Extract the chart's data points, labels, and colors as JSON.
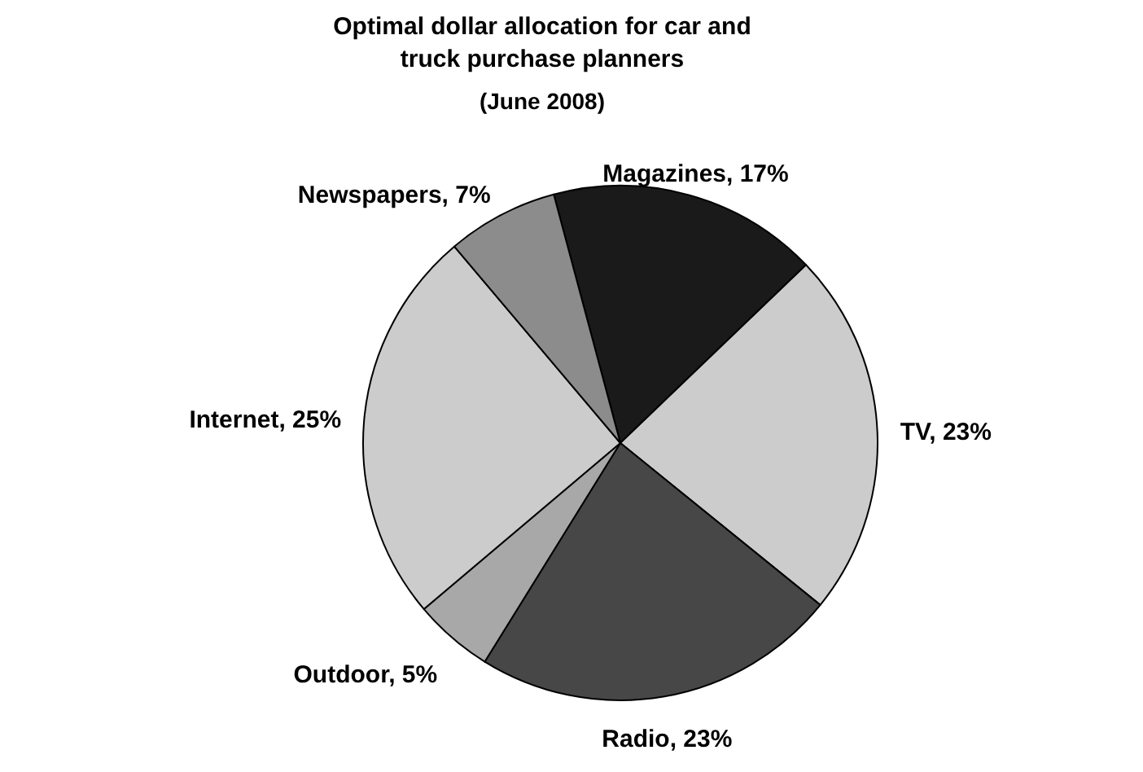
{
  "chart_data": {
    "type": "pie",
    "title": "Optimal dollar allocation for car and truck purchase planners",
    "subtitle": "(June 2008)",
    "categories": [
      "Magazines",
      "TV",
      "Radio",
      "Outdoor",
      "Internet",
      "Newspapers"
    ],
    "value_labels": [
      "17%",
      "23%",
      "23%",
      "5%",
      "25%",
      "7%"
    ],
    "values": [
      17,
      23,
      23,
      5,
      25,
      7
    ],
    "colors": [
      "#1a1a1a",
      "#cccccc",
      "#474747",
      "#a8a8a8",
      "#cccccc",
      "#8c8c8c"
    ]
  }
}
